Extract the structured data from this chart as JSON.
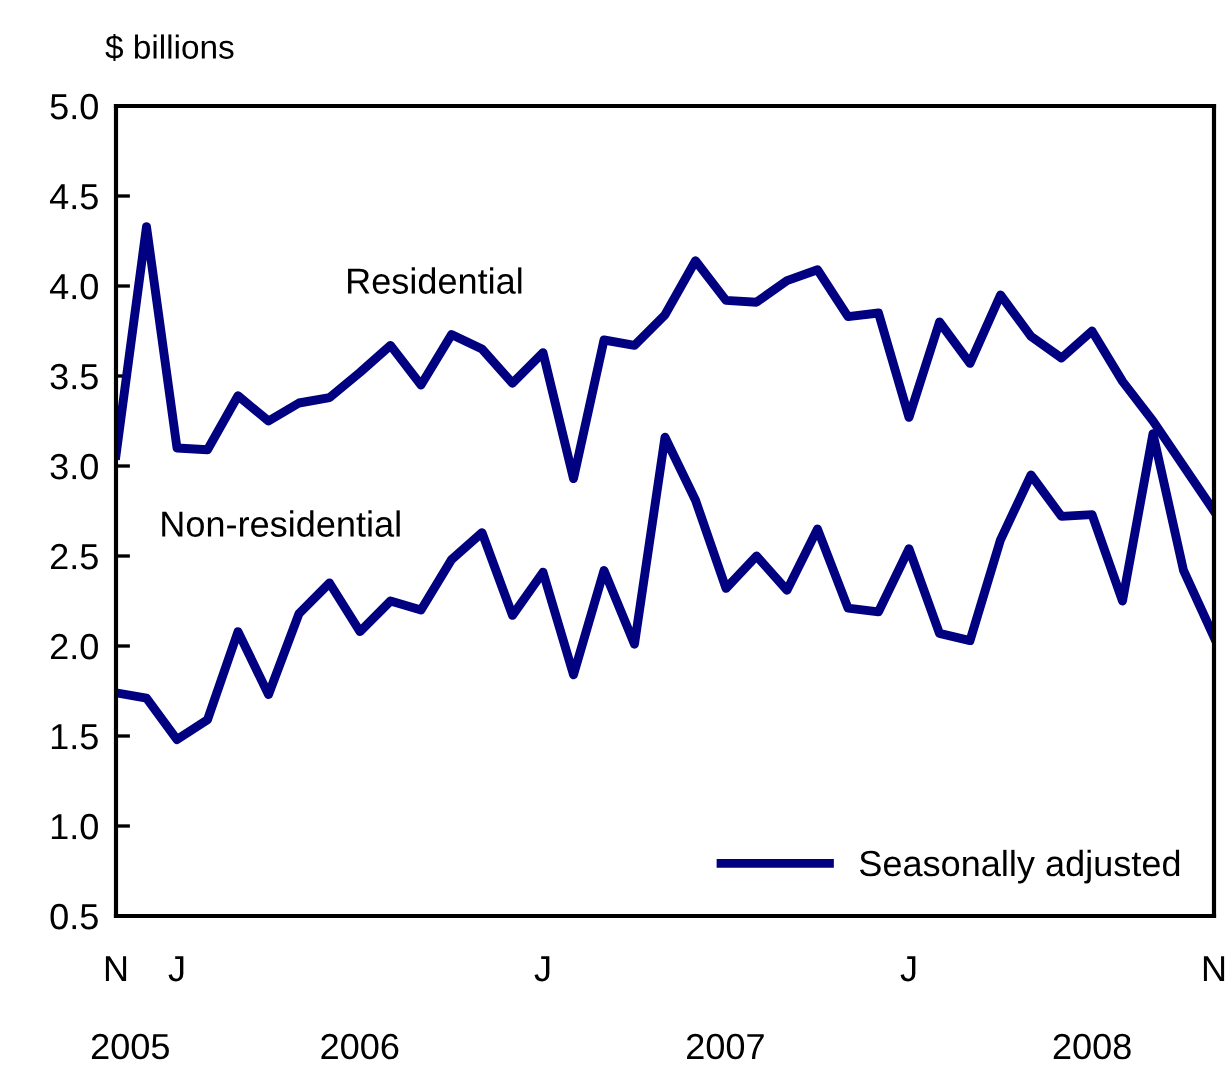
{
  "chart_data": {
    "type": "line",
    "ylabel": "$ billions",
    "categories": [
      "N",
      null,
      "J",
      null,
      null,
      null,
      null,
      null,
      null,
      null,
      null,
      null,
      null,
      null,
      "J",
      null,
      null,
      null,
      null,
      null,
      null,
      null,
      null,
      null,
      null,
      null,
      "J",
      null,
      null,
      null,
      null,
      null,
      null,
      null,
      null,
      null,
      "N"
    ],
    "series": [
      {
        "name": "Residential",
        "color": "#000080",
        "values": [
          3.06,
          4.33,
          3.1,
          3.09,
          3.39,
          3.25,
          3.35,
          3.38,
          3.52,
          3.67,
          3.45,
          3.73,
          3.65,
          3.46,
          3.63,
          2.93,
          3.7,
          3.67,
          3.84,
          4.14,
          3.92,
          3.91,
          4.03,
          4.09,
          3.83,
          3.85,
          3.27,
          3.8,
          3.57,
          3.95,
          3.72,
          3.6,
          3.75,
          3.47,
          3.25,
          3.0,
          2.75
        ]
      },
      {
        "name": "Non-residential",
        "color": "#000080",
        "values": [
          1.74,
          1.71,
          1.48,
          1.59,
          2.08,
          1.73,
          2.18,
          2.35,
          2.08,
          2.25,
          2.2,
          2.48,
          2.63,
          2.17,
          2.41,
          1.84,
          2.42,
          2.01,
          3.16,
          2.81,
          2.32,
          2.5,
          2.31,
          2.65,
          2.21,
          2.19,
          2.54,
          2.07,
          2.03,
          2.59,
          2.95,
          2.72,
          2.73,
          2.25,
          3.18,
          2.42,
          2.05
        ]
      }
    ],
    "annotations": [
      "2005",
      "2006",
      "2007",
      "2008",
      "Seasonally adjusted"
    ],
    "ylim": [
      0.5,
      5.0
    ],
    "yticks": [
      {
        "value": 0.5,
        "label": "0.5"
      },
      {
        "value": 1.0,
        "label": "1.0"
      },
      {
        "value": 1.5,
        "label": "1.5"
      },
      {
        "value": 2.0,
        "label": "2.0"
      },
      {
        "value": 2.5,
        "label": "2.5"
      },
      {
        "value": 3.0,
        "label": "3.0"
      },
      {
        "value": 3.5,
        "label": "3.5"
      },
      {
        "value": 4.0,
        "label": "4.0"
      },
      {
        "value": 4.5,
        "label": "4.5"
      },
      {
        "value": 5.0,
        "label": "5.0"
      }
    ],
    "legend": "top left",
    "grid": false,
    "marker": "none",
    "line_style": "solid"
  }
}
